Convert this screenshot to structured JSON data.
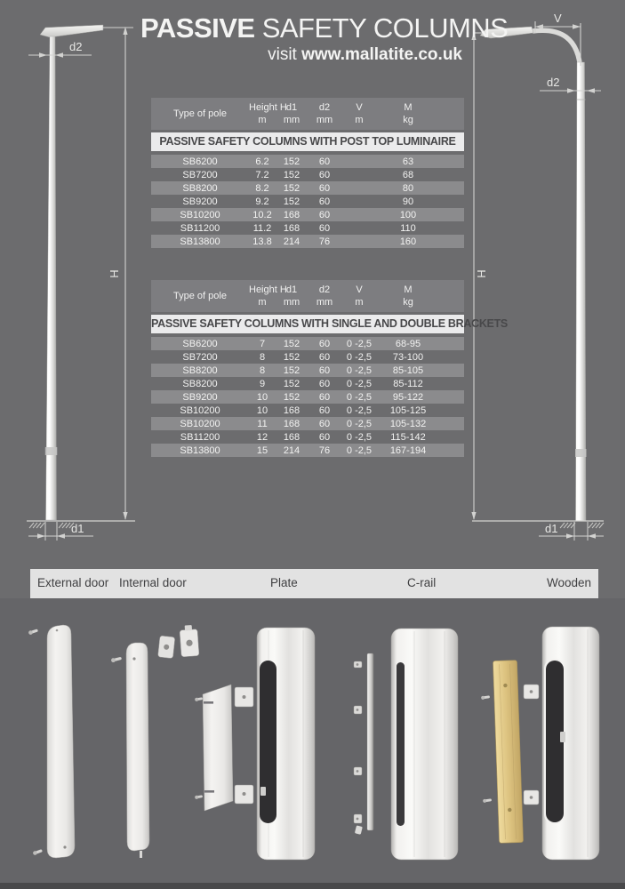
{
  "header": {
    "title_strong": "PASSIVE",
    "title_light": " SAFETY COLUMNS",
    "subtitle_prefix": "visit ",
    "subtitle_link": "www.mallatite.co.uk"
  },
  "dims": {
    "left_d2": "d2",
    "left_h": "H",
    "left_d1": "d1",
    "right_v": "V",
    "right_d2": "d2",
    "right_h": "H",
    "right_d1": "d1"
  },
  "spec_tables": [
    {
      "banner": "PASSIVE SAFETY COLUMNS WITH POST TOP LUMINAIRE",
      "columns": [
        {
          "l1": "Type of pole",
          "l2": ""
        },
        {
          "l1": "Height H",
          "l2": "m"
        },
        {
          "l1": "d1",
          "l2": "mm"
        },
        {
          "l1": "d2",
          "l2": "mm"
        },
        {
          "l1": "V",
          "l2": "m"
        },
        {
          "l1": "M",
          "l2": "kg"
        }
      ],
      "rows": [
        [
          "SB6200",
          "6.2",
          "152",
          "60",
          "",
          "63"
        ],
        [
          "SB7200",
          "7.2",
          "152",
          "60",
          "",
          "68"
        ],
        [
          "SB8200",
          "8.2",
          "152",
          "60",
          "",
          "80"
        ],
        [
          "SB9200",
          "9.2",
          "152",
          "60",
          "",
          "90"
        ],
        [
          "SB10200",
          "10.2",
          "168",
          "60",
          "",
          "100"
        ],
        [
          "SB11200",
          "11.2",
          "168",
          "60",
          "",
          "110"
        ],
        [
          "SB13800",
          "13.8",
          "214",
          "76",
          "",
          "160"
        ]
      ]
    },
    {
      "banner": "PASSIVE SAFETY COLUMNS WITH SINGLE AND DOUBLE BRACKETS",
      "columns": [
        {
          "l1": "Type of pole",
          "l2": ""
        },
        {
          "l1": "Height H",
          "l2": "m"
        },
        {
          "l1": "d1",
          "l2": "mm"
        },
        {
          "l1": "d2",
          "l2": "mm"
        },
        {
          "l1": "V",
          "l2": "m"
        },
        {
          "l1": "M",
          "l2": "kg"
        }
      ],
      "rows": [
        [
          "SB6200",
          "7",
          "152",
          "60",
          "0 -2,5",
          "68-95"
        ],
        [
          "SB7200",
          "8",
          "152",
          "60",
          "0 -2,5",
          "73-100"
        ],
        [
          "SB8200",
          "8",
          "152",
          "60",
          "0 -2,5",
          "85-105"
        ],
        [
          "SB8200",
          "9",
          "152",
          "60",
          "0 -2,5",
          "85-112"
        ],
        [
          "SB9200",
          "10",
          "152",
          "60",
          "0 -2,5",
          "95-122"
        ],
        [
          "SB10200",
          "10",
          "168",
          "60",
          "0 -2,5",
          "105-125"
        ],
        [
          "SB10200",
          "11",
          "168",
          "60",
          "0 -2,5",
          "105-132"
        ],
        [
          "SB11200",
          "12",
          "168",
          "60",
          "0 -2,5",
          "115-142"
        ],
        [
          "SB13800",
          "15",
          "214",
          "76",
          "0 -2,5",
          "167-194"
        ]
      ]
    }
  ],
  "door_bar": {
    "labels": [
      "External door",
      "Internal door",
      "Plate",
      "C-rail",
      "Wooden"
    ]
  },
  "colors": {
    "page_bg": "#6c6c6e",
    "bottom_bg": "#656568",
    "table_header_bg": "#7d7d80",
    "row_alt_bg": "#8b8b8d",
    "banner_bg": "#ebebec",
    "banner_text": "#48484a",
    "bar_bg": "#e2e2e2",
    "bar_text": "#3f3f41",
    "wood": "#dcc27f",
    "metal_light": "#f1f0ee",
    "aperture": "#2f2e30",
    "text_light": "#f2f2f1"
  }
}
